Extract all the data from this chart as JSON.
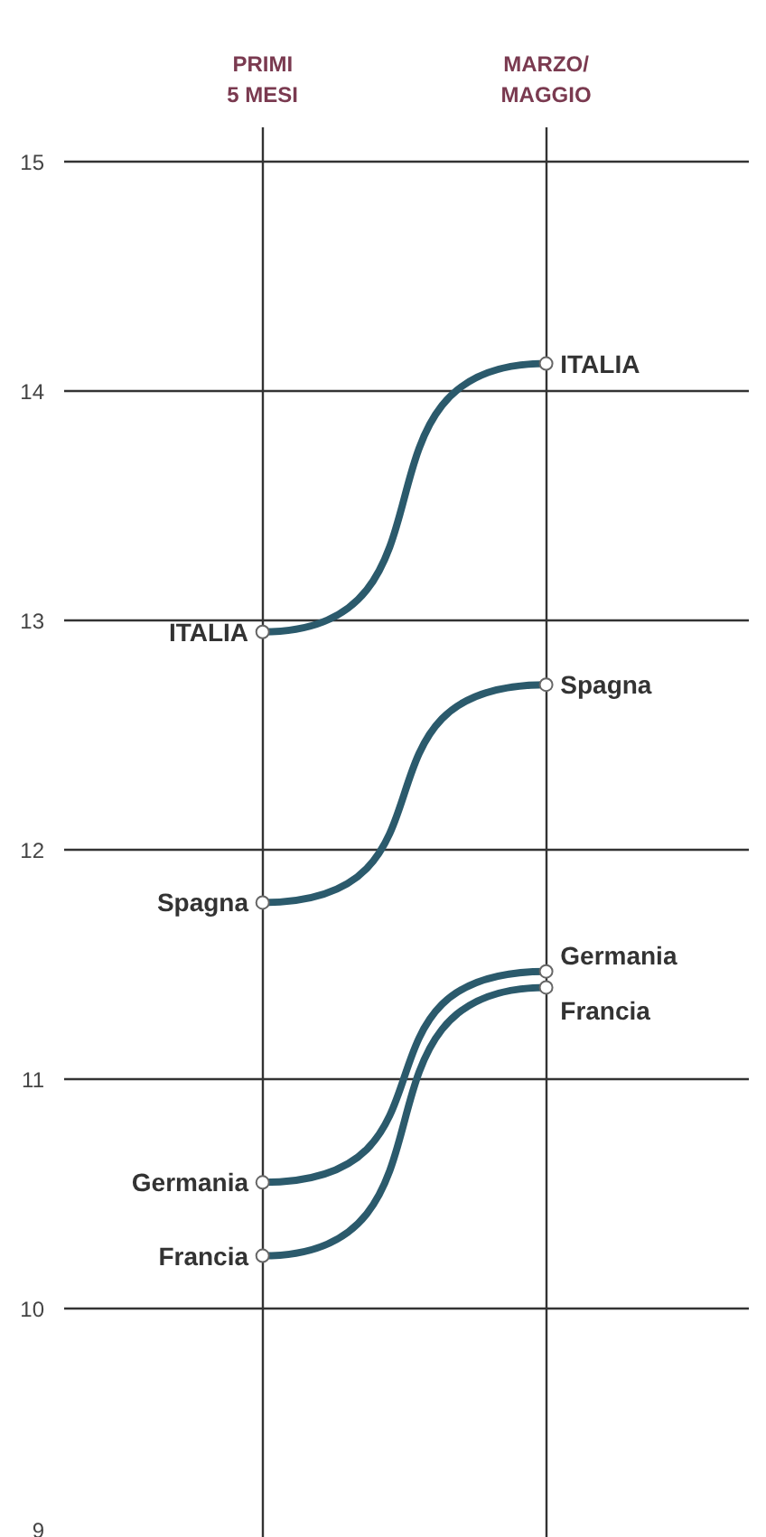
{
  "chart_data": {
    "type": "line",
    "categories": [
      "PRIMI\n5 MESI",
      "MARZO/\nMAGGIO"
    ],
    "series": [
      {
        "name": "ITALIA",
        "color": "#2b5a6c",
        "values": [
          12.95,
          14.12
        ]
      },
      {
        "name": "Spagna",
        "color": "#2b5a6c",
        "values": [
          11.77,
          12.72
        ]
      },
      {
        "name": "Germania",
        "color": "#2b5a6c",
        "values": [
          10.55,
          11.47
        ]
      },
      {
        "name": "Francia",
        "color": "#2b5a6c",
        "values": [
          10.23,
          11.4
        ]
      }
    ],
    "ylim": [
      9,
      15.15
    ],
    "yticks": [
      9,
      10,
      11,
      12,
      13,
      14,
      15
    ],
    "grid": true,
    "marker": "circle",
    "line_style": "solid"
  }
}
